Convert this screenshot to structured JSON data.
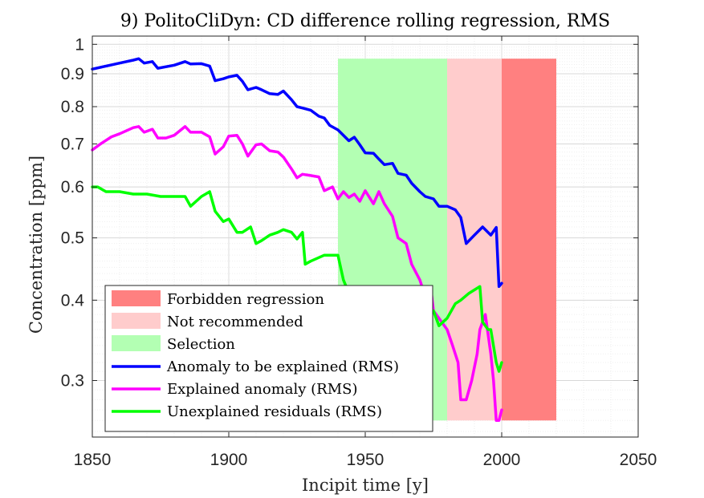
{
  "chart_data": {
    "type": "line",
    "title": "9) PolitoCliDyn: CD difference rolling regression, RMS",
    "xlabel": "Incipit time [y]",
    "ylabel": "Concentration [ppm]",
    "xlim": [
      1850,
      2050
    ],
    "ylim": [
      0.245,
      1.03
    ],
    "yscale": "log",
    "grid": "on",
    "legend_position": "bottom-left",
    "x_ticks": [
      "1850",
      "1900",
      "1950",
      "2000",
      "2050"
    ],
    "y_ticks": [
      "0.3",
      "0.4",
      "0.5",
      "0.6",
      "0.7",
      "0.8",
      "0.9",
      "1"
    ],
    "regions": [
      {
        "name": "Selection",
        "x0": 1940,
        "x1": 1980,
        "y0": 0.26,
        "y1": 0.95,
        "color": "#b3ffb3"
      },
      {
        "name": "Not recommended",
        "x0": 1980,
        "x1": 2000,
        "y0": 0.26,
        "y1": 0.95,
        "color": "#ffcccc"
      },
      {
        "name": "Forbidden regression",
        "x0": 2000,
        "x1": 2020,
        "y0": 0.26,
        "y1": 0.95,
        "color": "#ff8080"
      }
    ],
    "legend": [
      {
        "label": "Forbidden regression",
        "kind": "patch",
        "color": "#ff8080"
      },
      {
        "label": "Not recommended",
        "kind": "patch",
        "color": "#ffcccc"
      },
      {
        "label": "Selection",
        "kind": "patch",
        "color": "#b3ffb3"
      },
      {
        "label": "Anomaly to be explained (RMS)",
        "kind": "line",
        "color": "#0000ff"
      },
      {
        "label": "Explained anomaly (RMS)",
        "kind": "line",
        "color": "#ff00ff"
      },
      {
        "label": "Unexplained residuals (RMS)",
        "kind": "line",
        "color": "#00ff00"
      }
    ],
    "series": [
      {
        "name": "Anomaly to be explained (RMS)",
        "color": "#0000ff",
        "x": [
          1850,
          1855,
          1860,
          1865,
          1867,
          1869,
          1872,
          1874,
          1880,
          1884,
          1886,
          1890,
          1893,
          1895,
          1898,
          1900,
          1903,
          1905,
          1907,
          1910,
          1912,
          1915,
          1918,
          1920,
          1923,
          1925,
          1927,
          1930,
          1933,
          1935,
          1937,
          1940,
          1942,
          1944,
          1946,
          1948,
          1950,
          1953,
          1955,
          1957,
          1960,
          1962,
          1965,
          1967,
          1970,
          1972,
          1975,
          1977,
          1980,
          1983,
          1985,
          1987,
          1990,
          1993,
          1996,
          1998,
          1999,
          2000
        ],
        "y": [
          0.915,
          0.925,
          0.935,
          0.945,
          0.95,
          0.935,
          0.94,
          0.918,
          0.928,
          0.94,
          0.932,
          0.933,
          0.925,
          0.878,
          0.884,
          0.89,
          0.895,
          0.876,
          0.85,
          0.857,
          0.85,
          0.838,
          0.836,
          0.846,
          0.82,
          0.8,
          0.796,
          0.79,
          0.773,
          0.768,
          0.748,
          0.736,
          0.722,
          0.708,
          0.717,
          0.698,
          0.678,
          0.677,
          0.663,
          0.65,
          0.653,
          0.63,
          0.626,
          0.608,
          0.59,
          0.58,
          0.575,
          0.56,
          0.56,
          0.553,
          0.538,
          0.49,
          0.505,
          0.52,
          0.505,
          0.519,
          0.42,
          0.425
        ]
      },
      {
        "name": "Explained anomaly (RMS)",
        "color": "#ff00ff",
        "x": [
          1850,
          1853,
          1857,
          1860,
          1865,
          1867,
          1869,
          1872,
          1874,
          1877,
          1880,
          1884,
          1886,
          1890,
          1893,
          1895,
          1898,
          1900,
          1903,
          1905,
          1907,
          1910,
          1912,
          1915,
          1918,
          1920,
          1923,
          1925,
          1927,
          1930,
          1933,
          1935,
          1938,
          1940,
          1942,
          1944,
          1946,
          1948,
          1950,
          1953,
          1955,
          1957,
          1960,
          1962,
          1965,
          1967,
          1970,
          1972,
          1974,
          1975,
          1977,
          1980,
          1982,
          1984,
          1985,
          1987,
          1989,
          1991,
          1992,
          1994,
          1996,
          1997,
          1998,
          1999,
          2000
        ],
        "y": [
          0.685,
          0.7,
          0.718,
          0.726,
          0.742,
          0.745,
          0.73,
          0.738,
          0.715,
          0.715,
          0.722,
          0.745,
          0.73,
          0.73,
          0.718,
          0.675,
          0.693,
          0.72,
          0.722,
          0.7,
          0.67,
          0.698,
          0.7,
          0.683,
          0.68,
          0.668,
          0.64,
          0.62,
          0.628,
          0.625,
          0.622,
          0.592,
          0.6,
          0.575,
          0.59,
          0.578,
          0.585,
          0.57,
          0.592,
          0.565,
          0.59,
          0.565,
          0.54,
          0.5,
          0.49,
          0.455,
          0.43,
          0.405,
          0.42,
          0.385,
          0.375,
          0.36,
          0.34,
          0.32,
          0.28,
          0.28,
          0.3,
          0.33,
          0.36,
          0.38,
          0.33,
          0.3,
          0.26,
          0.26,
          0.27
        ]
      },
      {
        "name": "Unexplained residuals (RMS)",
        "color": "#00ff00",
        "x": [
          1850,
          1852,
          1855,
          1860,
          1865,
          1870,
          1875,
          1880,
          1884,
          1886,
          1890,
          1893,
          1895,
          1898,
          1900,
          1903,
          1905,
          1908,
          1910,
          1912,
          1915,
          1918,
          1920,
          1923,
          1925,
          1927,
          1928,
          1930,
          1935,
          1940,
          1942,
          1944,
          1946,
          1948,
          1950,
          1953,
          1955,
          1958,
          1960,
          1963,
          1965,
          1968,
          1970,
          1972,
          1975,
          1977,
          1980,
          1983,
          1985,
          1988,
          1990,
          1992,
          1993,
          1995,
          1996,
          1998,
          1999,
          2000
        ],
        "y": [
          0.6,
          0.6,
          0.59,
          0.59,
          0.585,
          0.585,
          0.58,
          0.58,
          0.58,
          0.56,
          0.58,
          0.59,
          0.55,
          0.53,
          0.535,
          0.51,
          0.51,
          0.52,
          0.49,
          0.495,
          0.505,
          0.51,
          0.515,
          0.51,
          0.498,
          0.51,
          0.455,
          0.46,
          0.47,
          0.47,
          0.43,
          0.41,
          0.4,
          0.39,
          0.38,
          0.37,
          0.375,
          0.36,
          0.35,
          0.355,
          0.365,
          0.37,
          0.375,
          0.38,
          0.385,
          0.365,
          0.375,
          0.395,
          0.4,
          0.41,
          0.415,
          0.42,
          0.37,
          0.36,
          0.36,
          0.32,
          0.31,
          0.32
        ]
      }
    ]
  }
}
